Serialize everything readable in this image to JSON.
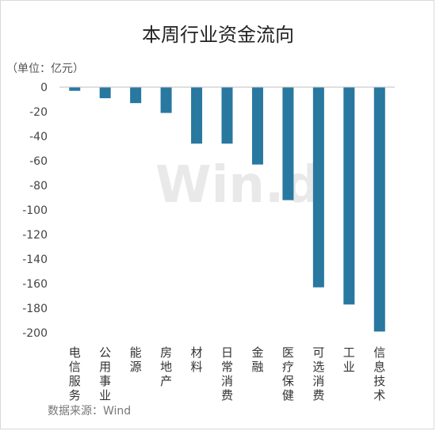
{
  "chart_data": {
    "type": "bar",
    "title": "本周行业资金流向",
    "unit_label": "（单位：亿元）",
    "source": "数据来源：Wind",
    "watermark": "Win.d",
    "categories": [
      "电信服务",
      "公用事业",
      "能源",
      "房地产",
      "材料",
      "日常消费",
      "金融",
      "医疗保健",
      "可选消费",
      "工业",
      "信息技术"
    ],
    "values": [
      -3,
      -9,
      -13,
      -21,
      -46,
      -46,
      -63,
      -92,
      -163,
      -177,
      -199
    ],
    "ylim": [
      -200,
      0
    ],
    "yticks": [
      "0",
      "-20",
      "-40",
      "-60",
      "-80",
      "-100",
      "-120",
      "-140",
      "-160",
      "-180",
      "-200"
    ],
    "grid": false,
    "legend": "none",
    "colors": {
      "bar": "#2878a0",
      "axis": "#bfbfbf"
    }
  }
}
